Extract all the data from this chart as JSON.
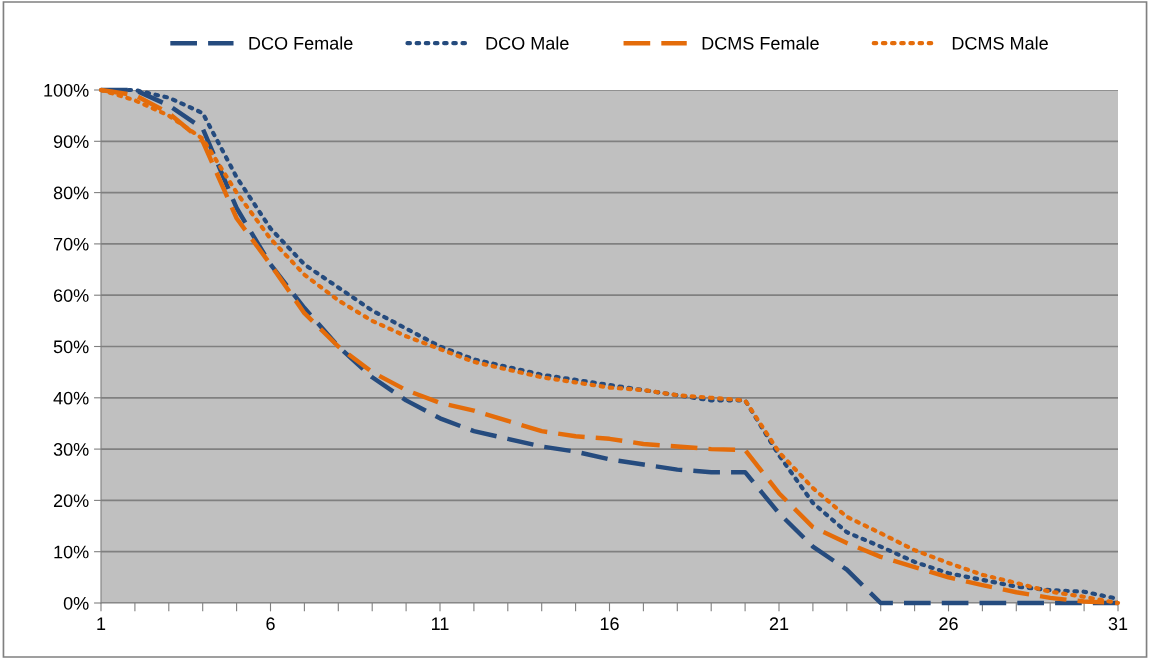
{
  "chart_data": {
    "type": "line",
    "x": [
      1,
      2,
      3,
      4,
      5,
      6,
      7,
      8,
      9,
      10,
      11,
      12,
      13,
      14,
      15,
      16,
      17,
      18,
      19,
      20,
      21,
      22,
      23,
      24,
      25,
      26,
      27,
      28,
      29,
      30,
      31
    ],
    "series": [
      {
        "name": "DCO Female",
        "color": "#254b7e",
        "line_style": "dashed",
        "values": [
          100,
          100,
          97,
          92.5,
          77,
          66,
          57.5,
          50,
          44,
          39.5,
          36,
          33.5,
          32,
          30.5,
          29.5,
          28,
          27,
          26,
          25.5,
          25.5,
          17.5,
          11,
          6.5,
          0,
          0,
          0,
          0,
          0,
          0,
          0,
          0
        ]
      },
      {
        "name": "DCO Male",
        "color": "#254b7e",
        "line_style": "dotted",
        "values": [
          100,
          100,
          98.5,
          95.5,
          83,
          73,
          66,
          61.5,
          57,
          53.5,
          50,
          47.5,
          46,
          44.5,
          43.5,
          42.5,
          41.5,
          40.5,
          39.5,
          39.5,
          28.8,
          19.5,
          13.8,
          11,
          8,
          5.8,
          4.5,
          3.2,
          2.5,
          2.2,
          0.8
        ]
      },
      {
        "name": "DCMS Female",
        "color": "#e46c0a",
        "line_style": "dashed",
        "values": [
          100,
          99,
          95.5,
          90,
          75,
          66,
          56.5,
          50,
          45,
          41.5,
          39,
          37.5,
          35.5,
          33.5,
          32.5,
          32,
          31,
          30.5,
          30,
          29.8,
          21.4,
          14.8,
          11.7,
          9,
          7,
          5,
          3.5,
          2.1,
          1,
          0.3,
          0
        ]
      },
      {
        "name": "DCMS Male",
        "color": "#e46c0a",
        "line_style": "dotted",
        "values": [
          100,
          98,
          95,
          90.5,
          80,
          71,
          64,
          59,
          55,
          52,
          49.5,
          47,
          45.5,
          44,
          43,
          42,
          41.5,
          40.5,
          40,
          39.5,
          29.4,
          22.4,
          16.8,
          13.6,
          10.3,
          7.8,
          5.5,
          3.9,
          2.2,
          1.2,
          0
        ]
      }
    ],
    "xlim": [
      1,
      31
    ],
    "xticks": [
      1,
      {
        "value": 2,
        "label": null
      },
      {
        "value": 3,
        "label": null
      },
      {
        "value": 4,
        "label": null
      },
      {
        "value": 5,
        "label": null
      },
      6,
      {
        "value": 7,
        "label": null
      },
      {
        "value": 8,
        "label": null
      },
      {
        "value": 9,
        "label": null
      },
      {
        "value": 10,
        "label": null
      },
      11,
      {
        "value": 12,
        "label": null
      },
      {
        "value": 13,
        "label": null
      },
      {
        "value": 14,
        "label": null
      },
      {
        "value": 15,
        "label": null
      },
      16,
      {
        "value": 17,
        "label": null
      },
      {
        "value": 18,
        "label": null
      },
      {
        "value": 19,
        "label": null
      },
      {
        "value": 20,
        "label": null
      },
      21,
      {
        "value": 22,
        "label": null
      },
      {
        "value": 23,
        "label": null
      },
      {
        "value": 24,
        "label": null
      },
      {
        "value": 25,
        "label": null
      },
      26,
      {
        "value": 27,
        "label": null
      },
      {
        "value": 28,
        "label": null
      },
      {
        "value": 29,
        "label": null
      },
      {
        "value": 30,
        "label": null
      },
      31
    ],
    "ylim": [
      0,
      100
    ],
    "yticks": [
      {
        "value": 0,
        "label": "0%"
      },
      {
        "value": 10,
        "label": "10%"
      },
      {
        "value": 20,
        "label": "20%"
      },
      {
        "value": 30,
        "label": "30%"
      },
      {
        "value": 40,
        "label": "40%"
      },
      {
        "value": 50,
        "label": "50%"
      },
      {
        "value": 60,
        "label": "60%"
      },
      {
        "value": 70,
        "label": "70%"
      },
      {
        "value": 80,
        "label": "80%"
      },
      {
        "value": 90,
        "label": "90%"
      },
      {
        "value": 100,
        "label": "100%"
      }
    ],
    "grid": "y",
    "legend": "top",
    "marker": "none"
  }
}
